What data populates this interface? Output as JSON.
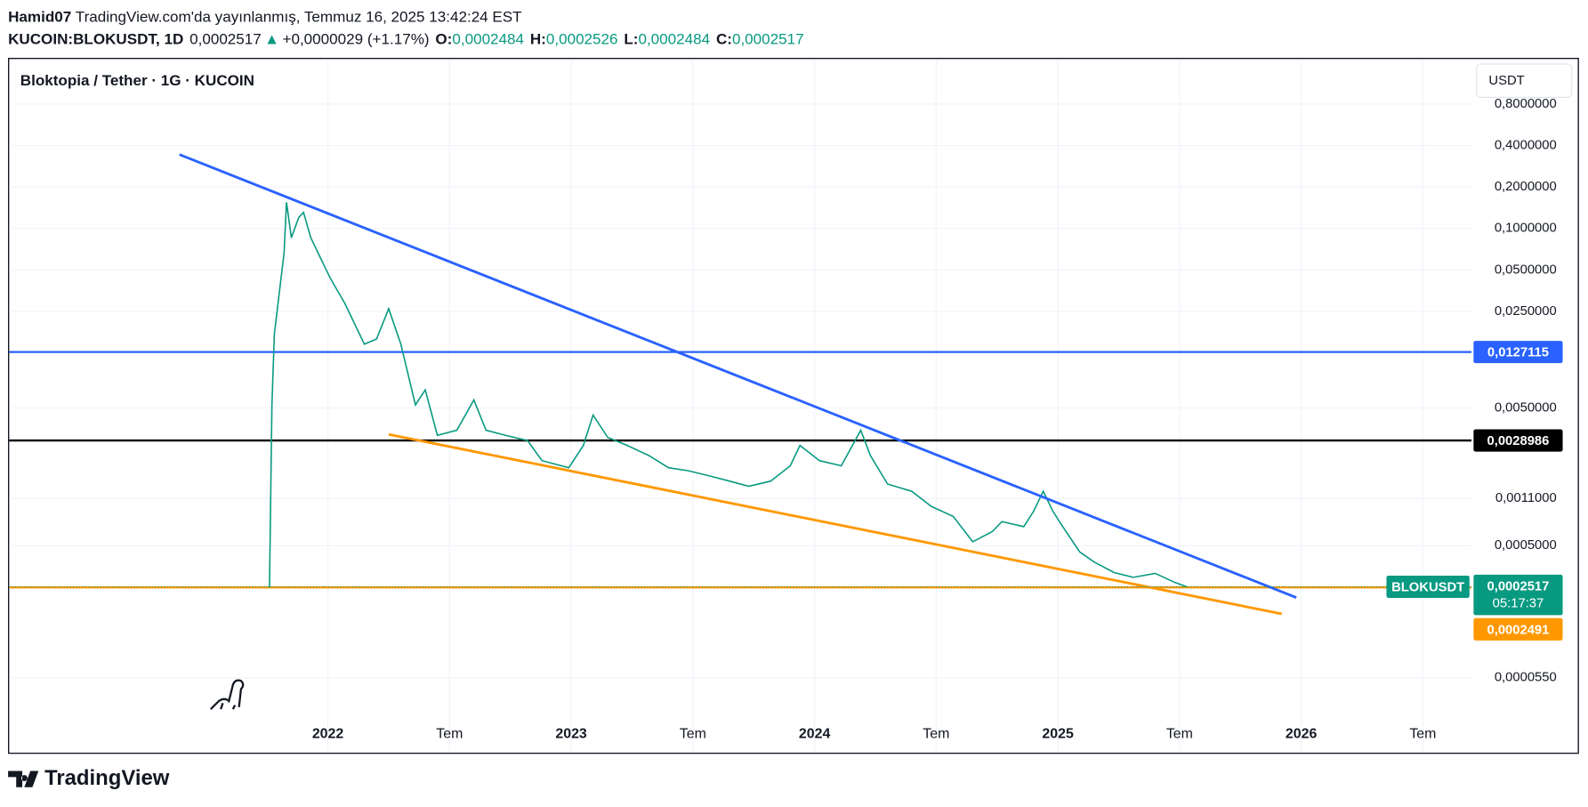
{
  "header": {
    "author": "Hamid07",
    "published": "TradingView.com'da yayınlanmış, Temmuz 16, 2025 13:42:24 EST",
    "symbol": "KUCOIN:BLOKUSDT, 1D",
    "price": "0,0002517",
    "change": "+0,0000029 (+1.17%)",
    "ohlc": [
      {
        "label": "O:",
        "value": "0,0002484"
      },
      {
        "label": "H:",
        "value": "0,0002526"
      },
      {
        "label": "L:",
        "value": "0,0002484"
      },
      {
        "label": "C:",
        "value": "0,0002517"
      }
    ]
  },
  "chart_data": {
    "type": "line",
    "title": "Bloktopia / Tether · 1G · KUCOIN",
    "currency": "USDT",
    "log_scale": true,
    "grid": true,
    "xlim": [
      2020.69,
      2026.7
    ],
    "xticks": [
      {
        "value": 2022,
        "label": "2022"
      },
      {
        "value": 2022.5,
        "label": "Tem"
      },
      {
        "value": 2023,
        "label": "2023"
      },
      {
        "value": 2023.5,
        "label": "Tem"
      },
      {
        "value": 2024,
        "label": "2024"
      },
      {
        "value": 2024.5,
        "label": "Tem"
      },
      {
        "value": 2025,
        "label": "2025"
      },
      {
        "value": 2025.5,
        "label": "Tem"
      },
      {
        "value": 2026,
        "label": "2026"
      },
      {
        "value": 2026.5,
        "label": "Tem"
      }
    ],
    "ylim": [
      1.6e-05,
      1.7
    ],
    "yticks": [
      {
        "value": 0.8,
        "label": "0,8000000"
      },
      {
        "value": 0.4,
        "label": "0,4000000"
      },
      {
        "value": 0.2,
        "label": "0,2000000"
      },
      {
        "value": 0.1,
        "label": "0,1000000"
      },
      {
        "value": 0.05,
        "label": "0,0500000"
      },
      {
        "value": 0.025,
        "label": "0,0250000"
      },
      {
        "value": 0.005,
        "label": "0,0050000"
      },
      {
        "value": 0.0011,
        "label": "0,0011000"
      },
      {
        "value": 0.0005,
        "label": "0,0005000"
      },
      {
        "value": 5.5e-05,
        "label": "0,0000550"
      }
    ],
    "series": [
      {
        "name": "BLOKUSDT",
        "color": "#089981",
        "x": [
          2021.76,
          2021.77,
          2021.78,
          2021.8,
          2021.82,
          2021.83,
          2021.85,
          2021.88,
          2021.9,
          2021.93,
          2021.97,
          2022.01,
          2022.07,
          2022.11,
          2022.15,
          2022.2,
          2022.25,
          2022.3,
          2022.36,
          2022.4,
          2022.45,
          2022.53,
          2022.6,
          2022.65,
          2022.73,
          2022.82,
          2022.88,
          2022.99,
          2023.05,
          2023.09,
          2023.15,
          2023.23,
          2023.32,
          2023.4,
          2023.48,
          2023.57,
          2023.65,
          2023.73,
          2023.82,
          2023.9,
          2023.94,
          2024.02,
          2024.11,
          2024.19,
          2024.23,
          2024.3,
          2024.4,
          2024.48,
          2024.57,
          2024.65,
          2024.73,
          2024.77,
          2024.86,
          2024.9,
          2024.94,
          2024.98,
          2025.02,
          2025.09,
          2025.15,
          2025.23,
          2025.31,
          2025.4,
          2025.48,
          2025.53
        ],
        "values": [
          0.000249,
          0.00525,
          0.0171,
          0.0338,
          0.0665,
          0.155,
          0.0857,
          0.12,
          0.131,
          0.0857,
          0.0611,
          0.0435,
          0.0285,
          0.0203,
          0.0145,
          0.0158,
          0.0262,
          0.0145,
          0.00525,
          0.00676,
          0.00316,
          0.00344,
          0.0057,
          0.00344,
          0.00316,
          0.0029,
          0.00207,
          0.00184,
          0.00267,
          0.00443,
          0.00305,
          0.00267,
          0.00225,
          0.00184,
          0.00175,
          0.0016,
          0.00147,
          0.00135,
          0.00147,
          0.0019,
          0.00267,
          0.00207,
          0.0019,
          0.00344,
          0.00225,
          0.0014,
          0.00124,
          0.000964,
          0.000815,
          0.000534,
          0.000632,
          0.000748,
          0.000687,
          0.000887,
          0.00124,
          0.000887,
          0.000687,
          0.00045,
          0.00038,
          0.00032,
          0.000295,
          0.000315,
          0.000271,
          0.0002517
        ]
      }
    ],
    "trendlines": [
      {
        "color": "#2962ff",
        "x": [
          2021.39,
          2025.98
        ],
        "y": [
          0.344,
          0.00021
        ]
      },
      {
        "color": "#ff9800",
        "x": [
          2022.25,
          2025.92
        ],
        "y": [
          0.00321,
          0.00016
        ]
      }
    ],
    "hlines": [
      {
        "value": 0.0127115,
        "label": "0,0127115",
        "color": "#2962ff"
      },
      {
        "value": 0.0028986,
        "label": "0,0028986",
        "color": "#000000"
      },
      {
        "value": 0.0002491,
        "label": "0,0002491",
        "color": "#ff9800"
      }
    ],
    "last": {
      "name": "BLOKUSDT",
      "value": 0.0002517,
      "label": "0,0002517",
      "countdown": "05:17:37",
      "color": "#089981"
    }
  },
  "footer": {
    "logo_text": "TradingView"
  }
}
